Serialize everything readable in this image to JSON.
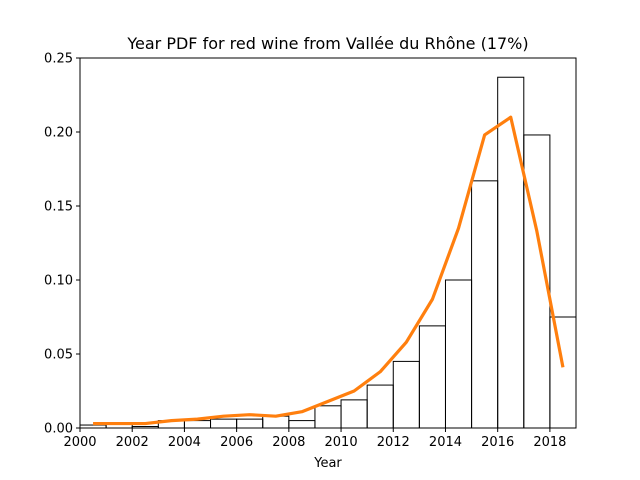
{
  "chart_data": {
    "type": "line",
    "title": "Year PDF for red wine from Vallée du Rhône (17%)",
    "xlabel": "Year",
    "ylabel": "",
    "xlim": [
      2000,
      2019
    ],
    "ylim": [
      0,
      0.25
    ],
    "grid": false,
    "xticks": [
      2000,
      2002,
      2004,
      2006,
      2008,
      2010,
      2012,
      2014,
      2016,
      2018
    ],
    "yticks": [
      0.0,
      0.05,
      0.1,
      0.15,
      0.2,
      0.25
    ],
    "colors": {
      "histogram": "#000000",
      "pdf": "#ff7f0e"
    },
    "series": [
      {
        "kind": "histogram-step",
        "bin_edges": [
          2000,
          2001,
          2002,
          2003,
          2004,
          2005,
          2006,
          2007,
          2008,
          2009,
          2010,
          2011,
          2012,
          2013,
          2014,
          2015,
          2016,
          2017,
          2018,
          2019
        ],
        "values": [
          0.002,
          0.003,
          0.001,
          0.005,
          0.005,
          0.006,
          0.006,
          0.008,
          0.005,
          0.015,
          0.019,
          0.029,
          0.045,
          0.069,
          0.1,
          0.167,
          0.237,
          0.198,
          0.075
        ]
      },
      {
        "kind": "line",
        "x": [
          2000.5,
          2001.5,
          2002.5,
          2003.5,
          2004.5,
          2005.5,
          2006.5,
          2007.5,
          2008.5,
          2009.5,
          2010.5,
          2011.5,
          2012.5,
          2013.5,
          2014.5,
          2015.5,
          2016.5,
          2017.5,
          2018.5
        ],
        "y": [
          0.003,
          0.003,
          0.003,
          0.005,
          0.006,
          0.008,
          0.009,
          0.008,
          0.011,
          0.018,
          0.025,
          0.038,
          0.058,
          0.087,
          0.135,
          0.198,
          0.21,
          0.133,
          0.041
        ]
      }
    ]
  }
}
